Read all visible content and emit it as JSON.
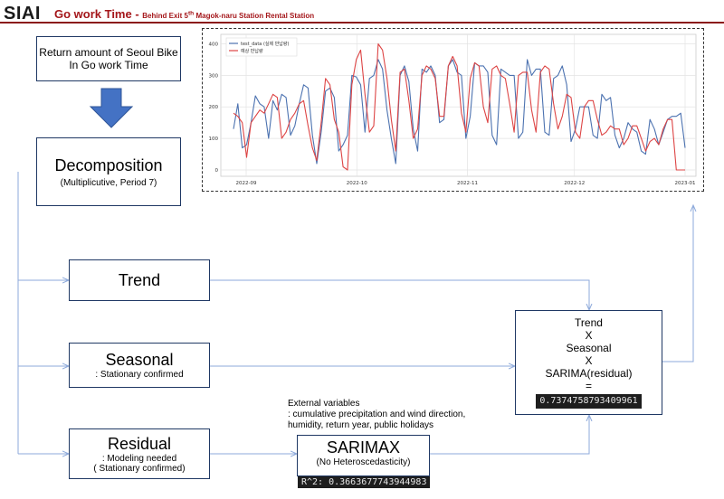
{
  "header": {
    "logo": "SIAI",
    "title": "Go work Time - ",
    "subtitle_a": "Behind Exit 5",
    "subtitle_sup": "th",
    "subtitle_b": " Magok-naru Station Rental Station"
  },
  "boxes": {
    "source": {
      "line1": "Return amount of Seoul Bike",
      "line2": "In Go work Time"
    },
    "decomposition": {
      "title": "Decomposition",
      "sub": "(Multiplicutive, Period 7)"
    },
    "trend": {
      "title": "Trend"
    },
    "seasonal": {
      "title": "Seasonal",
      "sub": ": Stationary confirmed"
    },
    "residual": {
      "title": "Residual",
      "sub1": ": Modeling needed",
      "sub2": "( Stationary confirmed)"
    },
    "sarimax": {
      "title": "SARIMAX",
      "sub": "(No Heteroscedasticity)",
      "badge": "R^2: 0.3663677743944983"
    },
    "result": {
      "l1": "Trend",
      "l2": "X",
      "l3": "Seasonal",
      "l4": "X",
      "l5": "SARIMA(residual)",
      "l6": "=",
      "badge": "0.7374758793409961"
    }
  },
  "external": {
    "l1": "External variables",
    "l2": ": cumulative precipitation and wind direction,",
    "l3": "humidity, return year, public holidays"
  },
  "colors": {
    "accent": "#a4161a",
    "box_border": "#1f3864",
    "arrow": "#4472c4",
    "connector": "#8eaadb",
    "actual": "#4c72b0",
    "predicted": "#dd4444"
  },
  "chart_data": {
    "type": "line",
    "yticks": [
      0,
      100,
      200,
      300,
      400
    ],
    "ylim": [
      -20,
      430
    ],
    "xticks": [
      "2022-09",
      "2022-10",
      "2022-11",
      "2022-12",
      "2023-01"
    ],
    "grid": true,
    "legend_placement": "top-left",
    "series": [
      {
        "name": "test_data (실제 반납량)",
        "color": "#4c72b0",
        "values": [
          130,
          210,
          70,
          80,
          150,
          235,
          210,
          200,
          100,
          220,
          190,
          240,
          230,
          110,
          140,
          210,
          270,
          260,
          110,
          20,
          120,
          250,
          260,
          230,
          60,
          80,
          110,
          300,
          295,
          270,
          120,
          290,
          300,
          350,
          320,
          190,
          100,
          20,
          300,
          330,
          280,
          130,
          60,
          320,
          310,
          330,
          300,
          150,
          160,
          330,
          350,
          310,
          300,
          100,
          170,
          340,
          330,
          330,
          310,
          110,
          80,
          320,
          310,
          300,
          300,
          100,
          120,
          350,
          300,
          320,
          320,
          120,
          110,
          290,
          300,
          330,
          270,
          90,
          130,
          200,
          200,
          200,
          110,
          100,
          240,
          220,
          230,
          110,
          70,
          100,
          150,
          130,
          120,
          60,
          50,
          160,
          130,
          80,
          120,
          160,
          170,
          170,
          180,
          70
        ]
      },
      {
        "name": "예상 반납량",
        "color": "#dd4444",
        "values": [
          180,
          170,
          150,
          40,
          150,
          170,
          190,
          180,
          210,
          240,
          230,
          100,
          120,
          160,
          180,
          210,
          220,
          140,
          70,
          30,
          150,
          290,
          270,
          160,
          120,
          10,
          0,
          270,
          350,
          380,
          240,
          120,
          140,
          400,
          380,
          290,
          160,
          60,
          310,
          320,
          220,
          100,
          130,
          300,
          330,
          320,
          290,
          170,
          170,
          330,
          360,
          330,
          180,
          120,
          290,
          340,
          330,
          200,
          150,
          320,
          330,
          300,
          290,
          210,
          120,
          300,
          310,
          310,
          190,
          120,
          310,
          330,
          320,
          210,
          130,
          170,
          240,
          230,
          120,
          100,
          200,
          220,
          220,
          160,
          110,
          120,
          140,
          130,
          130,
          80,
          100,
          140,
          140,
          100,
          60,
          90,
          100,
          80,
          130,
          160,
          160,
          0,
          0,
          0
        ]
      }
    ]
  }
}
